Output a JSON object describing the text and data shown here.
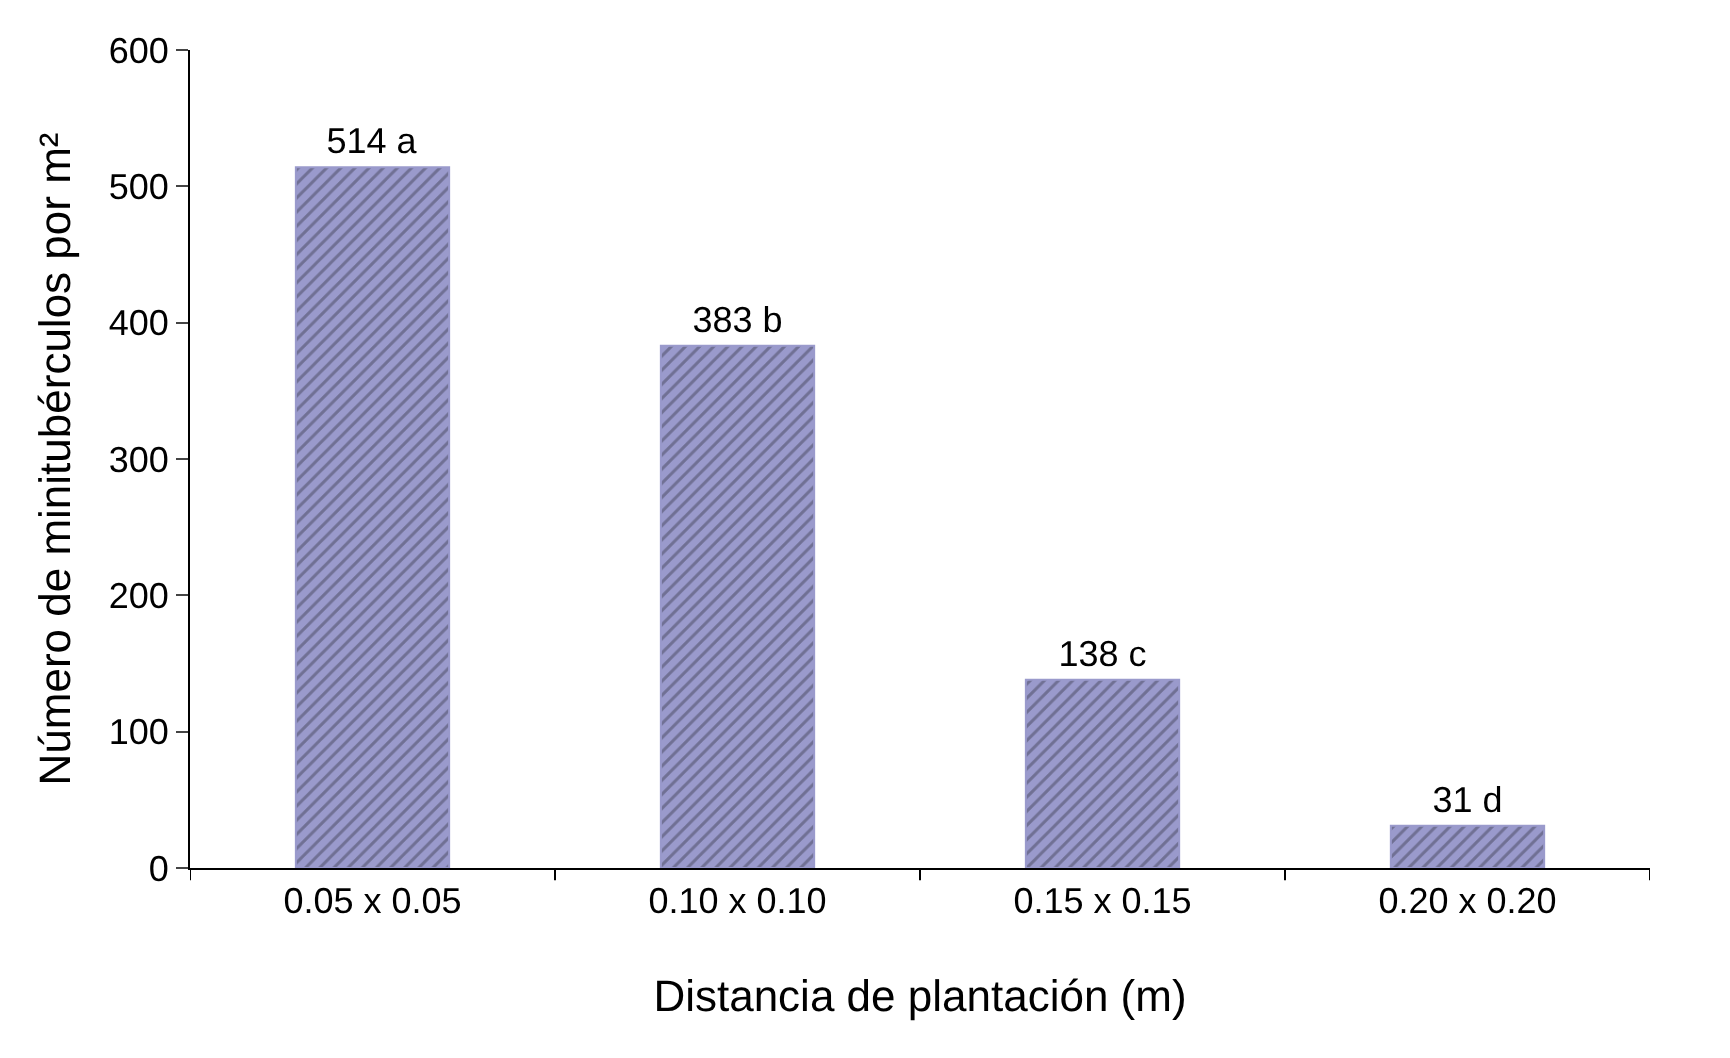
{
  "chart_data": {
    "type": "bar",
    "categories": [
      "0.05 x 0.05",
      "0.10 x 0.10",
      "0.15 x 0.15",
      "0.20 x 0.20"
    ],
    "values": [
      514,
      383,
      138,
      31
    ],
    "value_labels": [
      "514 a",
      "383 b",
      "138 c",
      "31 d"
    ],
    "color": "#9a9acc",
    "xlabel": "Distancia de plantación (m)",
    "ylabel": "Número de minitubérculos por m²",
    "ylim": [
      0,
      600
    ],
    "yticks": [
      0,
      100,
      200,
      300,
      400,
      500,
      600
    ]
  }
}
